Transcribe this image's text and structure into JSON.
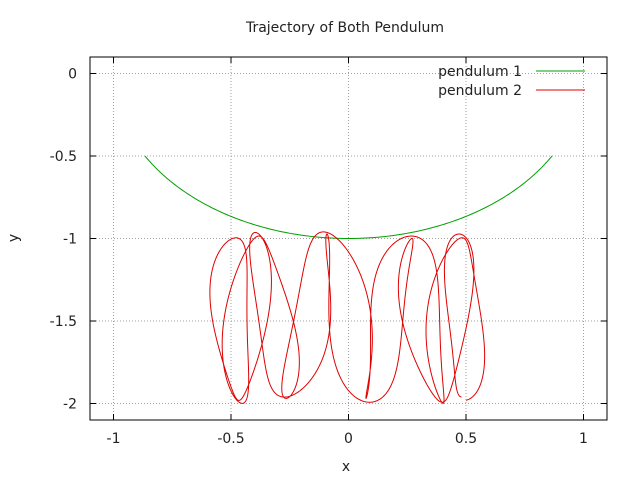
{
  "chart_data": {
    "type": "line",
    "title": "Trajectory of Both Pendulum",
    "xlabel": "x",
    "ylabel": "y",
    "xlim": [
      -1.1,
      1.1
    ],
    "ylim": [
      -2.1,
      0.1
    ],
    "x_ticks": [
      -1,
      -0.5,
      0,
      0.5,
      1
    ],
    "x_tick_labels": [
      "-1",
      "-0.5",
      "0",
      "0.5",
      "1"
    ],
    "y_ticks": [
      0,
      -0.5,
      -1,
      -1.5,
      -2
    ],
    "y_tick_labels": [
      "0",
      "-0.5",
      "-1",
      "-1.5",
      "-2"
    ],
    "grid": true,
    "legend_position": "top-right",
    "series": [
      {
        "name": "pendulum 1",
        "color": "#00a000",
        "theta_amplitude": 1.047,
        "period_units": 1.0,
        "samples": [
          [
            -0.866,
            -0.5
          ],
          [
            -0.5,
            -0.866
          ],
          [
            0,
            -1.0
          ],
          [
            0.5,
            -0.866
          ],
          [
            0.866,
            -0.5
          ]
        ]
      },
      {
        "name": "pendulum 2",
        "color": "#e00000",
        "x_range": [
          -0.55,
          0.58
        ],
        "y_range": [
          -2.0,
          -0.96
        ],
        "lobes": 9
      }
    ]
  }
}
